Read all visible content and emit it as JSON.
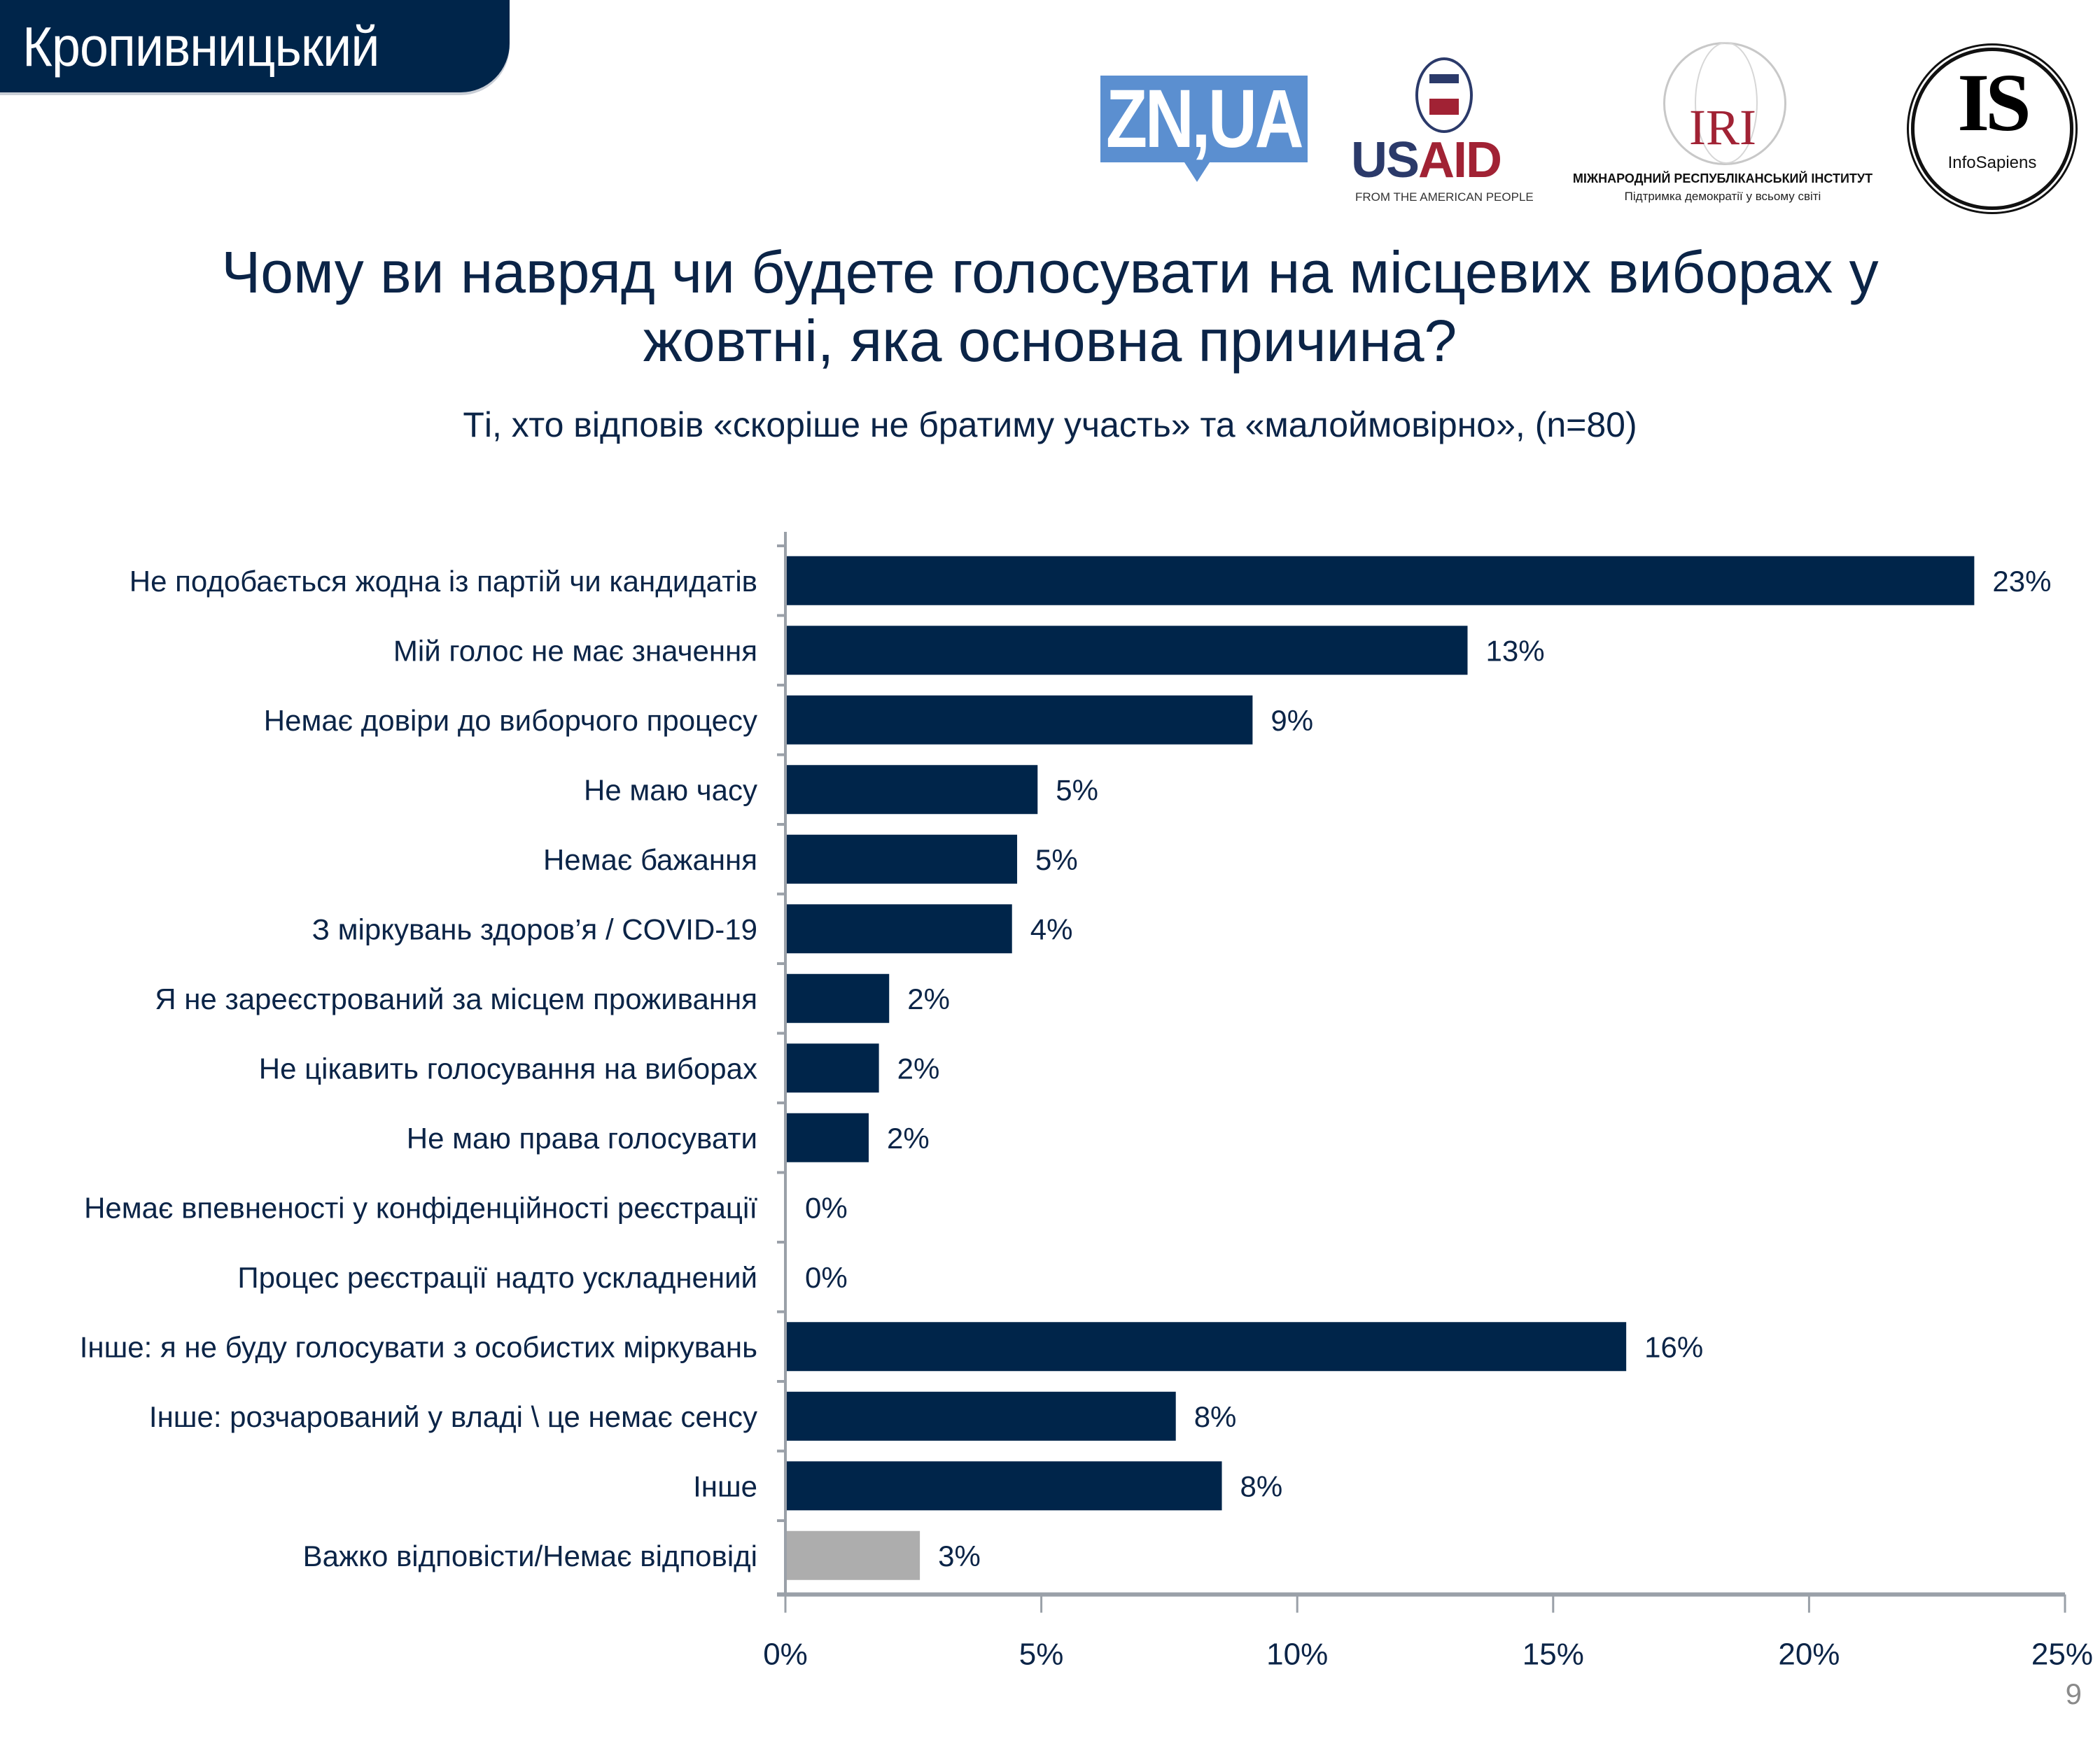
{
  "header": {
    "city": "Кропивницький",
    "logos": {
      "zn": "ZN,UA",
      "usaid": {
        "us": "US",
        "aid": "AID",
        "tagline": "FROM THE AMERICAN PEOPLE"
      },
      "iri": {
        "mark": "IRI",
        "name": "МІЖНАРОДНИЙ РЕСПУБЛІКАНСЬКИЙ ІНСТИТУТ",
        "tagline": "Підтримка демократії у всьому світі"
      },
      "infosapiens": {
        "mark": "IS",
        "name": "InfoSapiens"
      }
    }
  },
  "title_line1": "Чому ви навряд чи будете голосувати на місцевих виборах у",
  "title_line2": "жовтні, яка основна причина?",
  "subtitle": "Ті, хто відповів «скоріше не братиму участь» та «малоймовірно», (n=80)",
  "page_number": "9",
  "colors": {
    "primary": "#00254a",
    "secondary": "#adadad",
    "axis": "#9aa0a8"
  },
  "chart_data": {
    "type": "bar",
    "orientation": "horizontal",
    "title": "Чому ви навряд чи будете голосувати на місцевих виборах у жовтні, яка основна причина?",
    "subtitle": "Ті, хто відповів «скоріше не братиму участь» та «малоймовірно», (n=80)",
    "xlabel": "",
    "ylabel": "",
    "xlim": [
      0,
      25
    ],
    "x_ticks": [
      "0%",
      "5%",
      "10%",
      "15%",
      "20%",
      "25%"
    ],
    "x_tick_values": [
      0,
      5,
      10,
      15,
      20,
      25
    ],
    "grid": false,
    "legend": "none",
    "categories": [
      "Не подобається жодна із партій чи кандидатів",
      "Мій голос не має значення",
      "Немає довіри до виборчого процесу",
      "Не маю часу",
      "Немає бажання",
      "З міркувань здоров’я / COVID-19",
      "Я не зареєстрований за місцем проживання",
      "Не цікавить голосування на виборах",
      "Не маю права голосувати",
      "Немає впевненості у конфіденційності реєстрації",
      "Процес реєстрації надто ускладнений",
      "Інше: я не буду голосувати з особистих міркувань",
      "Інше: розчарований у владі \\ це немає сенсу",
      "Інше",
      "Важко відповісти/Немає відповіді"
    ],
    "values": [
      23.2,
      13.3,
      9.1,
      4.9,
      4.5,
      4.4,
      2.0,
      1.8,
      1.6,
      0,
      0,
      16.4,
      7.6,
      8.5,
      2.6
    ],
    "value_labels": [
      "23%",
      "13%",
      "9%",
      "5%",
      "5%",
      "4%",
      "2%",
      "2%",
      "2%",
      "0%",
      "0%",
      "16%",
      "8%",
      "8%",
      "3%"
    ],
    "bar_colors": [
      "primary",
      "primary",
      "primary",
      "primary",
      "primary",
      "primary",
      "primary",
      "primary",
      "primary",
      "primary",
      "primary",
      "primary",
      "primary",
      "primary",
      "secondary"
    ]
  }
}
